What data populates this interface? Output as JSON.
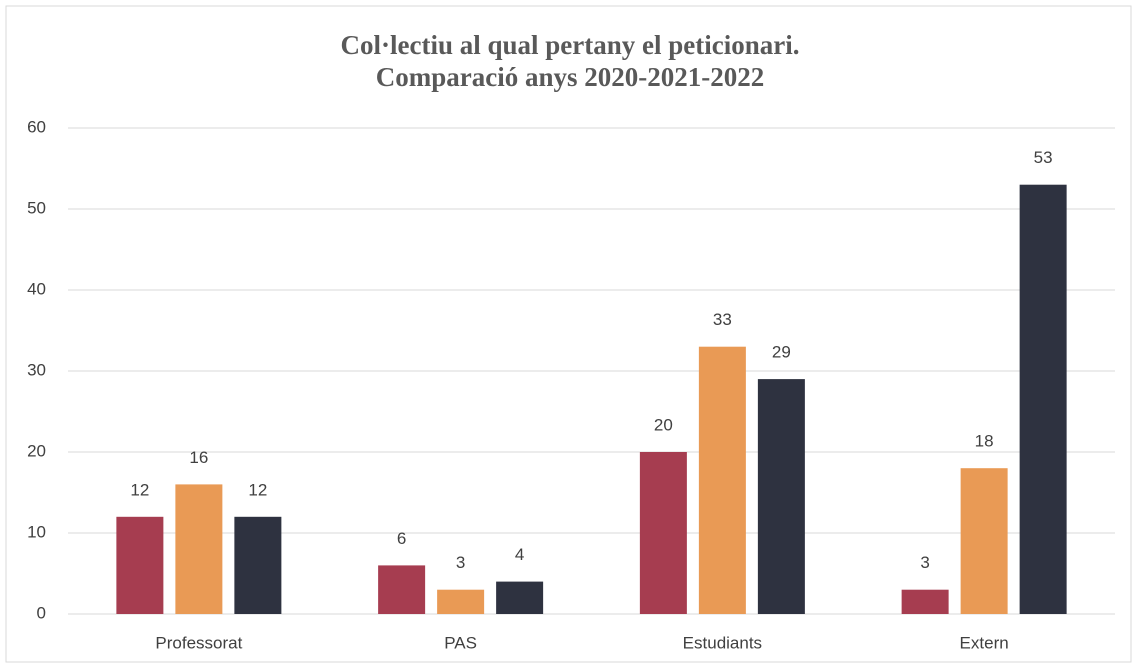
{
  "chart_data": {
    "type": "bar",
    "title": [
      "Col·lectiu al qual pertany el peticionari.",
      "Comparació anys 2020-2021-2022"
    ],
    "categories": [
      "Professorat",
      "PAS",
      "Estudiants",
      "Extern"
    ],
    "series": [
      {
        "color": "#a63d50",
        "values": [
          12,
          6,
          20,
          3
        ]
      },
      {
        "color": "#e99a55",
        "values": [
          16,
          3,
          33,
          18
        ]
      },
      {
        "color": "#2e3240",
        "values": [
          12,
          4,
          29,
          53
        ]
      }
    ],
    "ylim": [
      0,
      60
    ],
    "yticks": [
      0,
      10,
      20,
      30,
      40,
      50,
      60
    ],
    "grid": true
  }
}
